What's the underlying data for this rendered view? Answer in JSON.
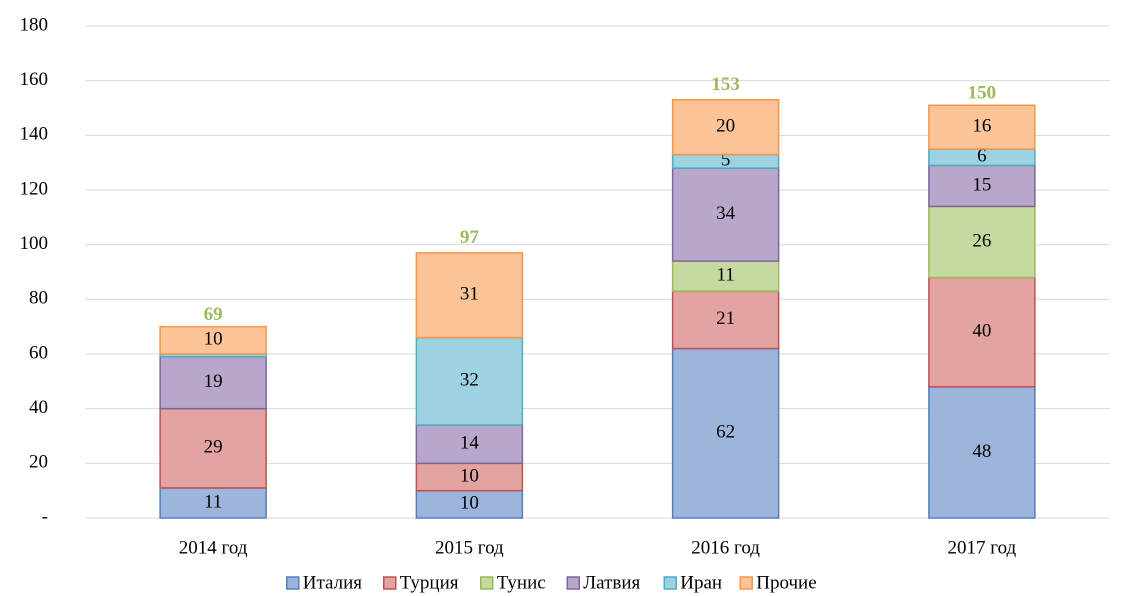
{
  "chart_data": {
    "type": "stacked_bar",
    "categories": [
      "2014 год",
      "2015 год",
      "2016 год",
      "2017 год"
    ],
    "series": [
      {
        "name": "Италия",
        "color": "#9db4dd",
        "edge_color": "#4f81bd",
        "values": [
          11,
          10,
          62,
          48
        ],
        "value_labels": [
          "11",
          "10",
          "62",
          "48"
        ]
      },
      {
        "name": "Турция",
        "color": "#e3a3a2",
        "edge_color": "#c0504d",
        "values": [
          29,
          10,
          21,
          40
        ],
        "value_labels": [
          "29",
          "10",
          "21",
          "40"
        ]
      },
      {
        "name": "Тунис",
        "color": "#c6d9a0",
        "edge_color": "#9bbb59",
        "values": [
          null,
          null,
          11,
          26
        ],
        "value_labels": [
          null,
          null,
          "11",
          "26"
        ]
      },
      {
        "name": "Латвия",
        "color": "#b7a7cb",
        "edge_color": "#8064a2",
        "values": [
          19,
          14,
          34,
          15
        ],
        "value_labels": [
          "19",
          "14",
          "34",
          "15"
        ]
      },
      {
        "name": "Иран",
        "color": "#9fd2e0",
        "edge_color": "#4bacc6",
        "values": [
          1,
          32,
          5,
          6
        ],
        "value_labels": [
          null,
          "32",
          "5",
          "6"
        ]
      },
      {
        "name": "Прочие",
        "color": "#fbc398",
        "edge_color": "#f79646",
        "values": [
          10,
          31,
          20,
          16
        ],
        "value_labels": [
          "10",
          "31",
          "20",
          "16"
        ]
      }
    ],
    "totals": [
      69,
      97,
      153,
      150
    ],
    "totals_color": "#9bbb59",
    "ylim": [
      0,
      180
    ],
    "yticks": [
      {
        "value": 0,
        "label": "-"
      },
      20,
      40,
      60,
      80,
      100,
      120,
      140,
      160,
      180
    ],
    "grid": true,
    "legend": "bottom"
  }
}
